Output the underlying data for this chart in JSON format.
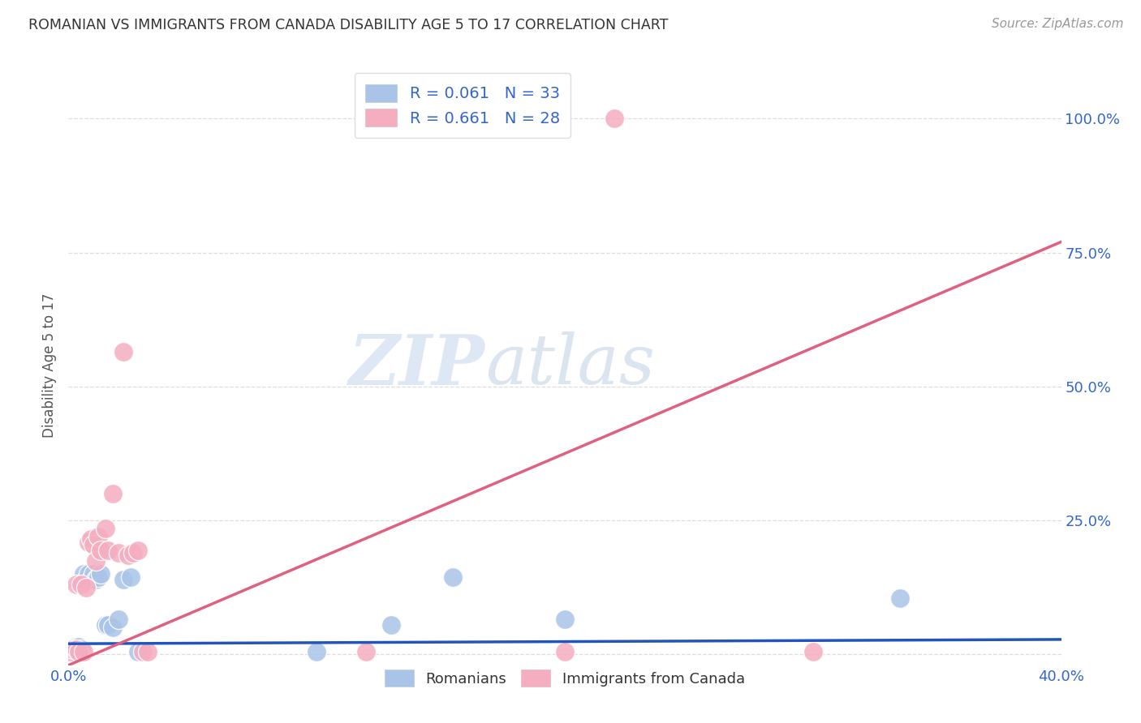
{
  "title": "ROMANIAN VS IMMIGRANTS FROM CANADA DISABILITY AGE 5 TO 17 CORRELATION CHART",
  "source": "Source: ZipAtlas.com",
  "ylabel_label": "Disability Age 5 to 17",
  "xlim": [
    0.0,
    0.4
  ],
  "ylim": [
    -0.02,
    1.1
  ],
  "x_ticks": [
    0.0,
    0.1,
    0.2,
    0.3,
    0.4
  ],
  "x_tick_labels": [
    "0.0%",
    "",
    "",
    "",
    "40.0%"
  ],
  "y_ticks": [
    0.0,
    0.25,
    0.5,
    0.75,
    1.0
  ],
  "y_tick_labels": [
    "",
    "25.0%",
    "50.0%",
    "75.0%",
    "100.0%"
  ],
  "grid_color": "#dddddd",
  "background_color": "#ffffff",
  "watermark_left": "ZIP",
  "watermark_right": "atlas",
  "romanian_color": "#aac4e8",
  "canadian_color": "#f5adc0",
  "romanian_line_color": "#2255bb",
  "canadian_line_color": "#e06080",
  "romanian_R": 0.061,
  "romanian_N": 33,
  "canadian_R": 0.661,
  "canadian_N": 28,
  "romanian_x": [
    0.001,
    0.001,
    0.002,
    0.002,
    0.003,
    0.003,
    0.003,
    0.004,
    0.004,
    0.004,
    0.005,
    0.005,
    0.006,
    0.006,
    0.007,
    0.008,
    0.009,
    0.01,
    0.011,
    0.012,
    0.013,
    0.015,
    0.016,
    0.018,
    0.02,
    0.022,
    0.025,
    0.028,
    0.1,
    0.13,
    0.155,
    0.2,
    0.335
  ],
  "romanian_y": [
    0.005,
    0.01,
    0.005,
    0.01,
    0.005,
    0.01,
    0.015,
    0.005,
    0.01,
    0.015,
    0.005,
    0.01,
    0.14,
    0.15,
    0.14,
    0.15,
    0.14,
    0.15,
    0.14,
    0.145,
    0.15,
    0.055,
    0.055,
    0.05,
    0.065,
    0.14,
    0.145,
    0.005,
    0.005,
    0.055,
    0.145,
    0.065,
    0.105
  ],
  "canadian_x": [
    0.001,
    0.002,
    0.003,
    0.003,
    0.004,
    0.005,
    0.006,
    0.007,
    0.008,
    0.009,
    0.01,
    0.011,
    0.012,
    0.013,
    0.015,
    0.016,
    0.018,
    0.02,
    0.022,
    0.024,
    0.026,
    0.028,
    0.03,
    0.032,
    0.12,
    0.2,
    0.22,
    0.3
  ],
  "canadian_y": [
    0.005,
    0.01,
    0.01,
    0.13,
    0.005,
    0.13,
    0.005,
    0.125,
    0.21,
    0.215,
    0.205,
    0.175,
    0.22,
    0.195,
    0.235,
    0.195,
    0.3,
    0.19,
    0.565,
    0.185,
    0.19,
    0.195,
    0.005,
    0.005,
    0.005,
    0.005,
    1.0,
    0.005
  ],
  "rom_line_x": [
    0.0,
    0.4
  ],
  "rom_line_y": [
    0.02,
    0.028
  ],
  "can_line_x": [
    0.0,
    0.4
  ],
  "can_line_y": [
    -0.02,
    0.77
  ]
}
